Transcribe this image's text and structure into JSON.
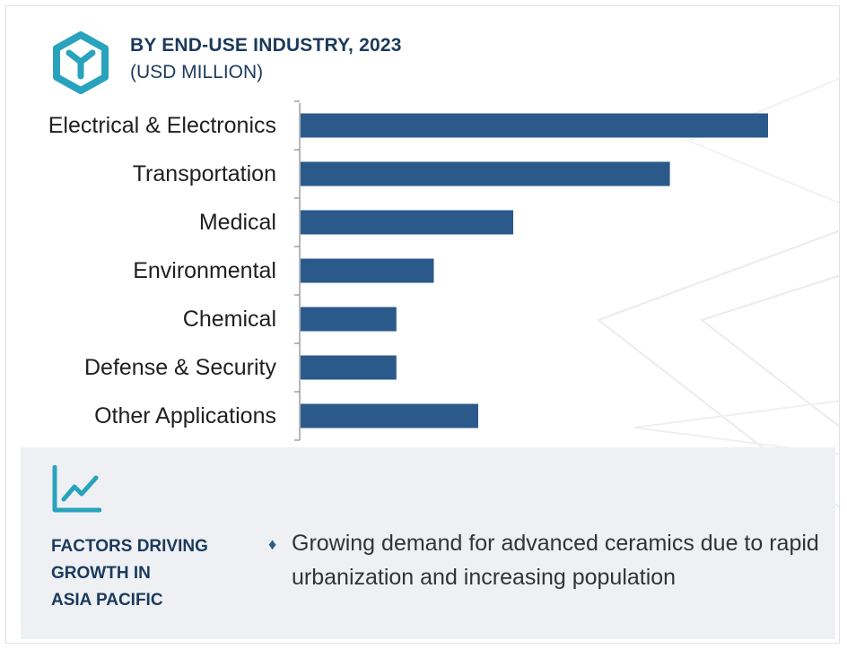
{
  "header": {
    "title": "BY END-USE INDUSTRY, 2023",
    "subtitle": "(USD MILLION)",
    "logo_icon": "hexagon-y-icon"
  },
  "chart_data": {
    "type": "bar",
    "orientation": "horizontal",
    "title": "BY END-USE INDUSTRY, 2023",
    "subtitle": "(USD MILLION)",
    "categories": [
      "Electrical & Electronics",
      "Transportation",
      "Medical",
      "Environmental",
      "Chemical",
      "Defense & Security",
      "Other Applications"
    ],
    "values": [
      100,
      79,
      45.5,
      28.5,
      20.5,
      20.5,
      38
    ],
    "value_scale": "relative (no axis ticks shown)",
    "xlim": [
      0,
      100
    ],
    "bar_color": "#2b5a8a",
    "grid": false,
    "legend": "none"
  },
  "factors": {
    "icon": "trend-chart-icon",
    "title": "FACTORS DRIVING\nGROWTH IN\nASIA PACIFIC",
    "bullet_icon": "diamond-bullet-icon",
    "text": "Growing demand for advanced ceramics due to rapid urbanization and increasing population"
  },
  "colors": {
    "accent": "#29a3bd",
    "navy": "#1b3a5c",
    "bar": "#2b5a8a",
    "panel_bg": "#eef0f4"
  }
}
